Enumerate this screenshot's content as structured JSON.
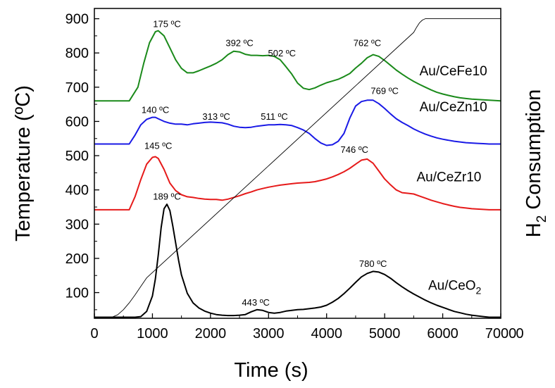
{
  "chart_data": {
    "type": "line",
    "xlabel": "Time (s)",
    "ylabel": "Temperature (ºC)",
    "y2label_main": "H",
    "y2label_sub": "2",
    "y2label_rest": " Consumption",
    "xlim": [
      0,
      7000
    ],
    "ylim": [
      25,
      930
    ],
    "x_ticks": [
      0,
      1000,
      2000,
      3000,
      4000,
      5000,
      6000,
      7000
    ],
    "x_tick_labels": [
      "0",
      "1000",
      "2000",
      "3000",
      "4000",
      "5000",
      "6000",
      "7000"
    ],
    "x_tick_trailing": "0",
    "y_ticks": [
      100,
      200,
      300,
      400,
      500,
      600,
      700,
      800,
      900
    ],
    "y_tick_labels": [
      "100",
      "200",
      "300",
      "400",
      "500",
      "600",
      "700",
      "800",
      "900"
    ],
    "series": [
      {
        "name": "Au/CeFe10",
        "color": "#1a8a1a",
        "label_pos": [
          5600,
          735
        ],
        "x": [
          0,
          600,
          750,
          850,
          950,
          1050,
          1100,
          1200,
          1300,
          1400,
          1500,
          1600,
          1700,
          1800,
          1900,
          2000,
          2100,
          2200,
          2300,
          2400,
          2500,
          2600,
          2700,
          2800,
          2900,
          3000,
          3100,
          3200,
          3300,
          3400,
          3500,
          3600,
          3700,
          3800,
          3900,
          4000,
          4100,
          4200,
          4300,
          4400,
          4500,
          4600,
          4700,
          4800,
          4900,
          5000,
          5100,
          5200,
          5300,
          5400,
          5500,
          5600,
          5700,
          5800,
          5900,
          6000,
          6100,
          6200,
          6300,
          6400,
          6500,
          6600,
          6700,
          6800,
          7000
        ],
        "y": [
          660,
          660,
          700,
          770,
          830,
          862,
          865,
          850,
          815,
          780,
          755,
          742,
          742,
          748,
          755,
          762,
          770,
          780,
          795,
          805,
          803,
          796,
          793,
          793,
          792,
          793,
          790,
          780,
          760,
          738,
          712,
          697,
          693,
          698,
          706,
          713,
          718,
          723,
          731,
          740,
          756,
          770,
          786,
          795,
          790,
          778,
          764,
          750,
          738,
          727,
          717,
          708,
          700,
          692,
          685,
          680,
          676,
          672,
          669,
          667,
          665,
          664,
          663,
          662,
          660
        ]
      },
      {
        "name": "Au/CeZn10",
        "color": "#1a1ae6",
        "label_pos": [
          5600,
          630
        ],
        "x": [
          0,
          600,
          700,
          800,
          900,
          1000,
          1050,
          1100,
          1200,
          1300,
          1400,
          1500,
          1600,
          1700,
          1800,
          1900,
          2000,
          2100,
          2200,
          2300,
          2400,
          2500,
          2600,
          2700,
          2800,
          2900,
          3000,
          3100,
          3200,
          3300,
          3400,
          3500,
          3600,
          3700,
          3800,
          3900,
          4000,
          4100,
          4200,
          4300,
          4400,
          4500,
          4600,
          4700,
          4800,
          4900,
          5000,
          5100,
          5200,
          5300,
          5400,
          5500,
          5600,
          5700,
          5800,
          5900,
          6000,
          6100,
          6200,
          6300,
          6400,
          6500,
          6600,
          6700,
          6800,
          7000
        ],
        "y": [
          534,
          534,
          560,
          590,
          606,
          612,
          612,
          608,
          600,
          595,
          592,
          592,
          590,
          593,
          595,
          597,
          598,
          597,
          596,
          592,
          586,
          583,
          582,
          583,
          586,
          588,
          590,
          590,
          591,
          590,
          588,
          582,
          575,
          565,
          550,
          537,
          530,
          532,
          542,
          565,
          610,
          645,
          658,
          662,
          662,
          652,
          638,
          622,
          608,
          597,
          588,
          578,
          570,
          563,
          557,
          552,
          548,
          545,
          542,
          540,
          538,
          537,
          536,
          535,
          534,
          534
        ]
      },
      {
        "name": "Au/CeZr10",
        "color": "#e61a1a",
        "label_pos": [
          5550,
          425
        ],
        "x": [
          0,
          600,
          700,
          800,
          900,
          1000,
          1050,
          1100,
          1200,
          1300,
          1400,
          1500,
          1600,
          1700,
          1800,
          1900,
          2000,
          2100,
          2200,
          2300,
          2400,
          2500,
          2600,
          2700,
          2800,
          2900,
          3000,
          3100,
          3200,
          3300,
          3400,
          3500,
          3600,
          3700,
          3800,
          3900,
          4000,
          4100,
          4200,
          4300,
          4400,
          4500,
          4600,
          4700,
          4800,
          4900,
          5000,
          5100,
          5200,
          5300,
          5400,
          5500,
          5600,
          5700,
          5800,
          5900,
          6000,
          6100,
          6200,
          6300,
          6400,
          6500,
          6600,
          6700,
          6800,
          7000
        ],
        "y": [
          342,
          342,
          380,
          430,
          475,
          495,
          497,
          492,
          460,
          420,
          398,
          386,
          380,
          378,
          375,
          373,
          372,
          372,
          370,
          373,
          378,
          383,
          389,
          394,
          400,
          404,
          408,
          411,
          414,
          416,
          418,
          420,
          421,
          422,
          424,
          428,
          432,
          438,
          445,
          453,
          463,
          475,
          487,
          490,
          478,
          455,
          432,
          415,
          400,
          392,
          390,
          388,
          382,
          376,
          370,
          365,
          360,
          356,
          352,
          349,
          347,
          345,
          344,
          343,
          342,
          342
        ]
      },
      {
        "name": "Au/CeO",
        "name_sub": "2",
        "color": "#000000",
        "label_pos": [
          5750,
          108
        ],
        "x": [
          0,
          700,
          800,
          900,
          1000,
          1050,
          1100,
          1150,
          1200,
          1250,
          1300,
          1350,
          1400,
          1450,
          1500,
          1600,
          1700,
          1800,
          1900,
          2000,
          2100,
          2200,
          2300,
          2400,
          2500,
          2600,
          2700,
          2800,
          2900,
          3000,
          3100,
          3200,
          3300,
          3400,
          3500,
          3600,
          3700,
          3800,
          3900,
          4000,
          4100,
          4200,
          4300,
          4400,
          4500,
          4600,
          4700,
          4800,
          4900,
          5000,
          5100,
          5200,
          5300,
          5400,
          5500,
          5600,
          5700,
          5800,
          5900,
          6000,
          6100,
          6200,
          6300,
          6400,
          6500,
          6600,
          6700,
          6800,
          7000
        ],
        "y": [
          28,
          28,
          30,
          45,
          90,
          140,
          210,
          290,
          345,
          358,
          340,
          295,
          245,
          195,
          152,
          98,
          70,
          55,
          46,
          40,
          36,
          34,
          33,
          33,
          34,
          36,
          44,
          50,
          48,
          42,
          40,
          42,
          46,
          48,
          50,
          51,
          53,
          55,
          58,
          63,
          72,
          83,
          97,
          113,
          130,
          146,
          156,
          162,
          160,
          153,
          142,
          129,
          117,
          106,
          96,
          87,
          78,
          70,
          63,
          57,
          51,
          45,
          41,
          37,
          34,
          32,
          30,
          28,
          28
        ]
      },
      {
        "name": "",
        "color": "#000000",
        "thin": true,
        "x": [
          0,
          300,
          400,
          500,
          600,
          700,
          800,
          900,
          5500,
          5550,
          5600,
          5650,
          5700,
          5800,
          7000
        ],
        "y": [
          28,
          28,
          35,
          50,
          70,
          93,
          118,
          143,
          860,
          875,
          888,
          896,
          900,
          900,
          900
        ]
      }
    ],
    "annotations": [
      {
        "text": "175 ºC",
        "x": 1250,
        "y": 875
      },
      {
        "text": "392 ºC",
        "x": 2500,
        "y": 820
      },
      {
        "text": "502 ºC",
        "x": 3230,
        "y": 790
      },
      {
        "text": "762 ºC",
        "x": 4700,
        "y": 820
      },
      {
        "text": "140 ºC",
        "x": 1050,
        "y": 625
      },
      {
        "text": "313 ºC",
        "x": 2100,
        "y": 605
      },
      {
        "text": "511 ºC",
        "x": 3100,
        "y": 605
      },
      {
        "text": "769 ºC",
        "x": 5000,
        "y": 680
      },
      {
        "text": "145 ºC",
        "x": 1100,
        "y": 520
      },
      {
        "text": "746 ºC",
        "x": 4480,
        "y": 508
      },
      {
        "text": "189 ºC",
        "x": 1250,
        "y": 372
      },
      {
        "text": "443 ºC",
        "x": 2780,
        "y": 62
      },
      {
        "text": "780 ºC",
        "x": 4800,
        "y": 175
      }
    ]
  }
}
